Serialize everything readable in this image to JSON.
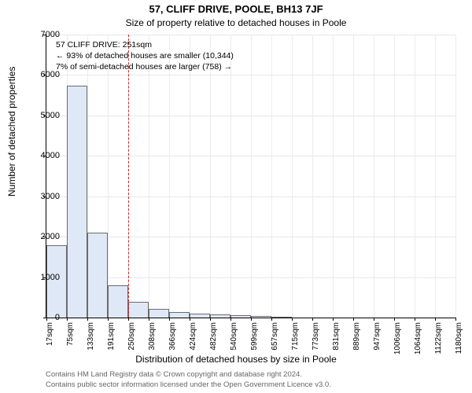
{
  "title": "57, CLIFF DRIVE, POOLE, BH13 7JF",
  "subtitle": "Size of property relative to detached houses in Poole",
  "ylabel": "Number of detached properties",
  "xlabel": "Distribution of detached houses by size in Poole",
  "chart": {
    "type": "histogram",
    "ylim": [
      0,
      7000
    ],
    "ytick_step": 1000,
    "yticks": [
      0,
      1000,
      2000,
      3000,
      4000,
      5000,
      6000,
      7000
    ],
    "xtick_labels": [
      "17sqm",
      "75sqm",
      "133sqm",
      "191sqm",
      "250sqm",
      "308sqm",
      "366sqm",
      "424sqm",
      "482sqm",
      "540sqm",
      "599sqm",
      "657sqm",
      "715sqm",
      "773sqm",
      "831sqm",
      "889sqm",
      "947sqm",
      "1006sqm",
      "1064sqm",
      "1122sqm",
      "1180sqm"
    ],
    "bar_values": [
      1780,
      5730,
      2100,
      790,
      380,
      210,
      140,
      90,
      70,
      50,
      30,
      20,
      0,
      0,
      0,
      0,
      0,
      0,
      0,
      0
    ],
    "bar_fill": "#dfe8f6",
    "bar_stroke": "#6b6b6b",
    "grid_color": "#e8e8e8",
    "marker_color": "#d62728",
    "marker_bin_index": 4,
    "background_color": "#ffffff"
  },
  "annotation": {
    "line1": "57 CLIFF DRIVE: 251sqm",
    "line2": "← 93% of detached houses are smaller (10,344)",
    "line3": "7% of semi-detached houses are larger (758) →"
  },
  "attribution": {
    "line1": "Contains HM Land Registry data © Crown copyright and database right 2024.",
    "line2": "Contains public sector information licensed under the Open Government Licence v3.0."
  }
}
